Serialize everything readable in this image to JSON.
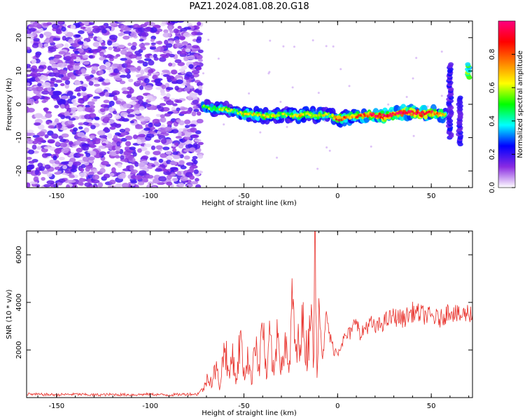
{
  "title": "PAZ1.2024.081.08.20.G18",
  "chart_data": [
    {
      "type": "heatmap",
      "xlabel": "Height of straight line (km)",
      "ylabel": "Frequency (Hz)",
      "xlim": [
        -166,
        72
      ],
      "ylim": [
        -25,
        25
      ],
      "xticks": [
        -150,
        -100,
        -50,
        0,
        50
      ],
      "yticks": [
        -20,
        -10,
        0,
        10,
        20
      ],
      "colorbar": {
        "label": "Normalized spectral amplitude",
        "range": [
          0,
          1
        ],
        "ticks": [
          0.0,
          0.2,
          0.4,
          0.6,
          0.8
        ],
        "colors": [
          "#ffffff",
          "#8a2be2",
          "#0000ff",
          "#00ffff",
          "#00ff00",
          "#ffff00",
          "#ff8000",
          "#ff0000",
          "#ff0080"
        ]
      },
      "ridge": {
        "x": [
          -72,
          -66,
          -60,
          -55,
          -50,
          -45,
          -40,
          -35,
          -30,
          -25,
          -20,
          -15,
          -10,
          -5,
          0,
          5,
          10,
          15,
          20,
          25,
          30,
          35,
          40,
          45,
          50,
          55,
          58
        ],
        "y": [
          -0.5,
          -1.5,
          -1.5,
          -2.0,
          -3.0,
          -3.0,
          -3.5,
          -3.5,
          -3.0,
          -3.2,
          -3.5,
          -3.0,
          -3.5,
          -3.0,
          -4.5,
          -4.0,
          -3.5,
          -3.2,
          -3.5,
          -3.5,
          -3.0,
          -2.5,
          -2.5,
          -2.8,
          -2.5,
          -3.0,
          -3.0
        ],
        "amp": [
          0.45,
          0.5,
          0.5,
          0.45,
          0.55,
          0.6,
          0.55,
          0.6,
          0.5,
          0.5,
          0.6,
          0.55,
          0.6,
          0.5,
          0.75,
          0.65,
          0.7,
          0.8,
          0.85,
          0.9,
          0.85,
          0.85,
          0.85,
          0.9,
          0.8,
          0.7,
          0.5
        ]
      },
      "noise_region": {
        "x_from": -166,
        "x_to": -73,
        "amp": 0.2
      },
      "secondary_streaks": [
        {
          "x": 60,
          "y_from": -10,
          "y_to": 12,
          "amp": 0.2
        },
        {
          "x": 65,
          "y_from": -12,
          "y_to": 2,
          "amp": 0.2
        },
        {
          "x": 70,
          "y_from": 8,
          "y_to": 12,
          "amp": 0.45
        }
      ]
    },
    {
      "type": "line",
      "xlabel": "Height of straight line (km)",
      "ylabel": "SNR (10 * v/v)",
      "xlim": [
        -166,
        72
      ],
      "ylim": [
        0,
        7000
      ],
      "xticks": [
        -150,
        -100,
        -50,
        0,
        50
      ],
      "yticks": [
        2000,
        4000,
        6000
      ],
      "color": "#e8302a",
      "series": [
        {
          "x": [
            -166,
            -160,
            -150,
            -140,
            -130,
            -120,
            -110,
            -100,
            -90,
            -80,
            -75,
            -71,
            -69,
            -67,
            -65,
            -63,
            -61,
            -60,
            -58,
            -56,
            -54,
            -52,
            -50,
            -48,
            -46,
            -44,
            -42,
            -40,
            -38,
            -36,
            -34,
            -32,
            -30,
            -28,
            -26,
            -24,
            -22,
            -20,
            -18,
            -16,
            -14,
            -13,
            -12,
            -11,
            -10,
            -8,
            -6,
            -4,
            -2,
            0,
            2,
            5,
            8,
            10,
            12,
            15,
            18,
            20,
            25,
            30,
            35,
            40,
            45,
            50,
            55,
            60,
            65,
            70,
            72
          ],
          "y": [
            150,
            130,
            120,
            140,
            110,
            130,
            120,
            140,
            110,
            150,
            140,
            450,
            1000,
            600,
            1300,
            500,
            1700,
            2300,
            800,
            1900,
            600,
            2600,
            900,
            1800,
            600,
            2900,
            1000,
            3400,
            700,
            2600,
            800,
            3300,
            1200,
            2400,
            900,
            4100,
            1600,
            3000,
            2800,
            1700,
            5000,
            900,
            6900,
            1500,
            4200,
            1500,
            3500,
            2500,
            2000,
            1900,
            2300,
            2600,
            2800,
            3500,
            2500,
            3000,
            3100,
            2900,
            3200,
            3400,
            3300,
            3600,
            3500,
            3400,
            3300,
            3700,
            3400,
            3600,
            3500
          ]
        }
      ]
    }
  ]
}
